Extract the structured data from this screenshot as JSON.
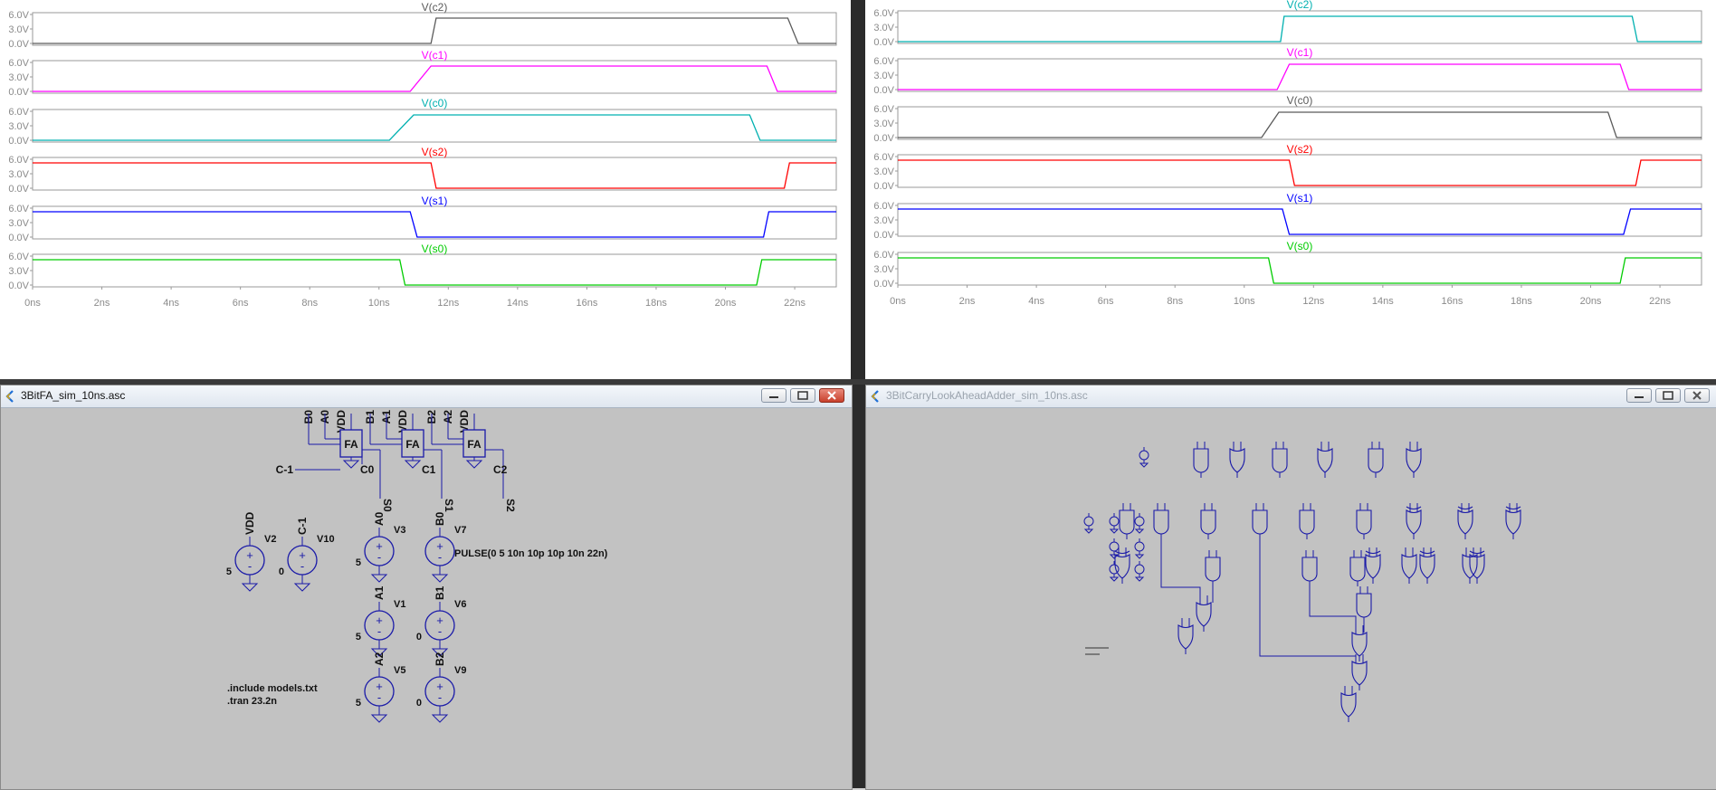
{
  "waveforms_left": {
    "traces": [
      {
        "label": "V(c2)",
        "color": "#5a5a5a"
      },
      {
        "label": "V(c1)",
        "color": "#ff00ff"
      },
      {
        "label": "V(c0)",
        "color": "#00b0b0"
      },
      {
        "label": "V(s2)",
        "color": "#ff0000"
      },
      {
        "label": "V(s1)",
        "color": "#0000ff"
      },
      {
        "label": "V(s0)",
        "color": "#00cc00"
      }
    ],
    "y_ticks": [
      "6.0V",
      "3.0V",
      "0.0V"
    ],
    "x_ticks": [
      "0ns",
      "2ns",
      "4ns",
      "6ns",
      "8ns",
      "10ns",
      "12ns",
      "14ns",
      "16ns",
      "18ns",
      "20ns",
      "22ns"
    ]
  },
  "waveforms_right": {
    "traces": [
      {
        "label": "V(c2)",
        "color": "#00b0b0"
      },
      {
        "label": "V(c1)",
        "color": "#ff00ff"
      },
      {
        "label": "V(c0)",
        "color": "#5a5a5a"
      },
      {
        "label": "V(s2)",
        "color": "#ff0000"
      },
      {
        "label": "V(s1)",
        "color": "#0000ff"
      },
      {
        "label": "V(s0)",
        "color": "#00cc00"
      }
    ],
    "y_ticks": [
      "6.0V",
      "3.0V",
      "0.0V"
    ],
    "x_ticks": [
      "0ns",
      "2ns",
      "4ns",
      "6ns",
      "8ns",
      "10ns",
      "12ns",
      "14ns",
      "16ns",
      "18ns",
      "20ns",
      "22ns"
    ]
  },
  "window_left": {
    "title": "3BitFA_sim_10ns.asc",
    "fa_label": "FA",
    "top_pins": [
      "B0",
      "A0",
      "VDD",
      "B1",
      "A1",
      "VDD",
      "B2",
      "A2",
      "VDD"
    ],
    "side_labels": [
      "C-1",
      "C0",
      "C1",
      "C2"
    ],
    "outputs": [
      "S0",
      "S1",
      "S2"
    ],
    "sources": [
      {
        "name": "V2",
        "node": "VDD",
        "value": "5"
      },
      {
        "name": "V10",
        "node": "C-1",
        "value": "0"
      },
      {
        "name": "V3",
        "node": "A0",
        "value": "5"
      },
      {
        "name": "V7",
        "node": "B0",
        "value": "PULSE(0 5 10n 10p 10p 10n 22n)"
      },
      {
        "name": "V1",
        "node": "A1",
        "value": "5"
      },
      {
        "name": "V6",
        "node": "B1",
        "value": "0"
      },
      {
        "name": "V5",
        "node": "A2",
        "value": "5"
      },
      {
        "name": "V9",
        "node": "B2",
        "value": "0"
      }
    ],
    "directive_include": ".include models.txt",
    "directive_tran": ".tran 23.2n"
  },
  "window_right": {
    "title": "3BitCarryLookAheadAdder_sim_10ns.asc"
  }
}
